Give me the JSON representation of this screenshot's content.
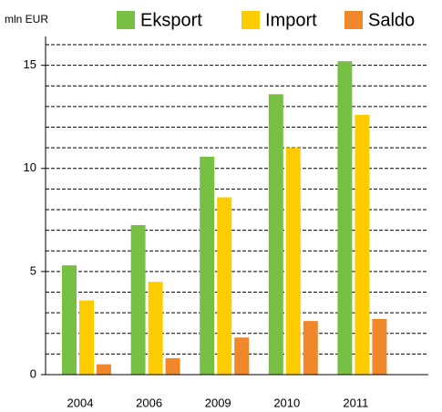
{
  "chart_data": {
    "type": "bar",
    "y_label": "mln EUR",
    "categories": [
      "2004",
      "2006",
      "2009",
      "2010",
      "2011"
    ],
    "series": [
      {
        "name": "Eksport",
        "color": "#77c043",
        "values": [
          5.3,
          7.25,
          10.57,
          13.6,
          15.2
        ]
      },
      {
        "name": "Import",
        "color": "#ffcc00",
        "values": [
          3.6,
          4.5,
          8.6,
          11.0,
          12.6
        ]
      },
      {
        "name": "Saldo",
        "color": "#f0872a",
        "values": [
          0.5,
          0.8,
          1.8,
          2.6,
          2.7
        ]
      }
    ],
    "ylim": [
      0,
      16.4
    ],
    "yticks": [
      0,
      5,
      10,
      15
    ],
    "minor_yticks": [
      1,
      2,
      3,
      4,
      5,
      6,
      7,
      8,
      9,
      10,
      11,
      12,
      13,
      14,
      15,
      16
    ],
    "grid": true,
    "grid_style": "dashed",
    "legend": "top"
  }
}
